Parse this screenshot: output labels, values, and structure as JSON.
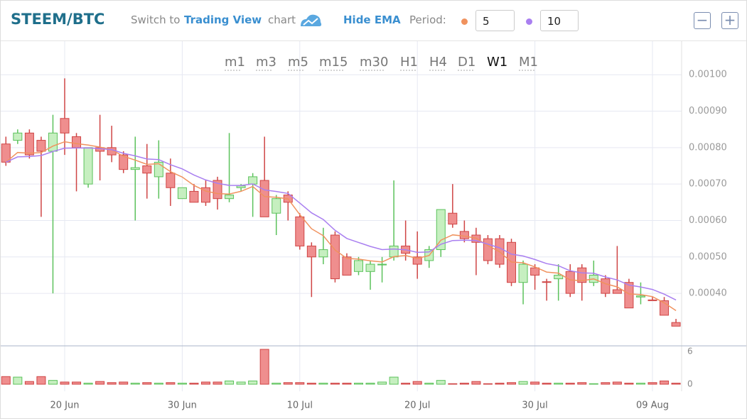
{
  "header": {
    "switch_prefix": "Switch to",
    "switch_link": "Trading View",
    "switch_suffix": "chart",
    "zoom_out": "−",
    "zoom_in": "+"
  },
  "chart_data": {
    "type": "candlestick",
    "title": "STEEM/BTC",
    "timeframes": [
      "m1",
      "m3",
      "m5",
      "m15",
      "m30",
      "H1",
      "H4",
      "D1",
      "W1",
      "M1"
    ],
    "selected_timeframe": "W1",
    "ema": {
      "label": "Hide EMA",
      "period_label": "Period:",
      "periods": [
        {
          "value": 5,
          "color": "#f0925e"
        },
        {
          "value": 10,
          "color": "#a97ff0"
        }
      ]
    },
    "up_color": "#c6efc0",
    "up_line": "#5cc25c",
    "down_color": "#ef8e8e",
    "down_line": "#cf4545",
    "grid": true,
    "x": [
      "15 Jun",
      "16 Jun",
      "17 Jun",
      "18 Jun",
      "19 Jun",
      "20 Jun",
      "21 Jun",
      "22 Jun",
      "23 Jun",
      "24 Jun",
      "25 Jun",
      "26 Jun",
      "27 Jun",
      "28 Jun",
      "29 Jun",
      "30 Jun",
      "01 Jul",
      "02 Jul",
      "03 Jul",
      "04 Jul",
      "05 Jul",
      "06 Jul",
      "07 Jul",
      "08 Jul",
      "09 Jul",
      "10 Jul",
      "11 Jul",
      "12 Jul",
      "13 Jul",
      "14 Jul",
      "15 Jul",
      "16 Jul",
      "17 Jul",
      "18 Jul",
      "19 Jul",
      "20 Jul",
      "21 Jul",
      "22 Jul",
      "23 Jul",
      "24 Jul",
      "25 Jul",
      "26 Jul",
      "27 Jul",
      "28 Jul",
      "29 Jul",
      "30 Jul",
      "31 Jul",
      "01 Aug",
      "02 Aug",
      "03 Aug",
      "04 Aug",
      "05 Aug",
      "06 Aug",
      "07 Aug",
      "08 Aug",
      "09 Aug",
      "10 Aug",
      "11 Aug"
    ],
    "xticks": [
      "20 Jun",
      "30 Jun",
      "10 Jul",
      "20 Jul",
      "30 Jul",
      "09 Aug"
    ],
    "open": [
      0.00081,
      0.00082,
      0.00084,
      0.00082,
      0.00079,
      0.00088,
      0.00083,
      0.0007,
      0.0008,
      0.0008,
      0.00078,
      0.00074,
      0.00075,
      0.00072,
      0.00073,
      0.00066,
      0.00068,
      0.00069,
      0.00071,
      0.00066,
      0.00069,
      0.0007,
      0.00071,
      0.00062,
      0.00067,
      0.00061,
      0.00053,
      0.0005,
      0.00056,
      0.0005,
      0.00046,
      0.00046,
      0.000478,
      0.0005,
      0.00053,
      0.0005,
      0.00049,
      0.00052,
      0.00062,
      0.00057,
      0.00056,
      0.00055,
      0.00055,
      0.00054,
      0.00043,
      0.00047,
      0.000432,
      0.00044,
      0.00046,
      0.00047,
      0.00043,
      0.00044,
      0.00041,
      0.00043,
      0.00039,
      0.000382,
      0.00038,
      0.00032
    ],
    "high": [
      0.00083,
      0.00085,
      0.00085,
      0.00083,
      0.00089,
      0.00099,
      0.00084,
      0.0008,
      0.00089,
      0.00086,
      0.00079,
      0.00083,
      0.00081,
      0.00082,
      0.00077,
      0.00069,
      0.0007,
      0.00071,
      0.00072,
      0.00084,
      0.0007,
      0.00073,
      0.00083,
      0.00067,
      0.00068,
      0.00062,
      0.00054,
      0.00058,
      0.00057,
      0.00051,
      0.0005,
      0.00049,
      0.0005,
      0.00071,
      0.0006,
      0.00057,
      0.00053,
      0.00063,
      0.0007,
      0.0006,
      0.00058,
      0.00056,
      0.00056,
      0.00055,
      0.00049,
      0.00048,
      0.00044,
      0.00048,
      0.00048,
      0.00048,
      0.00049,
      0.00045,
      0.00053,
      0.00044,
      0.00043,
      0.00039,
      0.00039,
      0.00033
    ],
    "low": [
      0.00075,
      0.00081,
      0.00077,
      0.00061,
      0.0004,
      0.00078,
      0.00068,
      0.00069,
      0.00071,
      0.00076,
      0.00073,
      0.0006,
      0.00066,
      0.00066,
      0.00064,
      0.00066,
      0.00065,
      0.00064,
      0.00063,
      0.00065,
      0.00068,
      0.00061,
      0.00061,
      0.00056,
      0.0006,
      0.00052,
      0.00039,
      0.00048,
      0.00043,
      0.00045,
      0.00045,
      0.00041,
      0.00043,
      0.00049,
      0.00049,
      0.00044,
      0.00047,
      0.0005,
      0.00058,
      0.00054,
      0.00045,
      0.00048,
      0.00047,
      0.00042,
      0.00037,
      0.00041,
      0.00038,
      0.00038,
      0.00039,
      0.00038,
      0.00042,
      0.00039,
      0.0004,
      0.00036,
      0.00037,
      0.00038,
      0.00034,
      0.00031
    ],
    "close": [
      0.00076,
      0.00084,
      0.00078,
      0.00079,
      0.00084,
      0.00084,
      0.0008,
      0.0008,
      0.00079,
      0.00078,
      0.00074,
      0.000745,
      0.00073,
      0.00076,
      0.00069,
      0.00069,
      0.00065,
      0.00065,
      0.00066,
      0.00067,
      0.000695,
      0.00072,
      0.00061,
      0.00066,
      0.00065,
      0.00053,
      0.0005,
      0.00052,
      0.00044,
      0.00045,
      0.00049,
      0.00048,
      0.00048,
      0.00053,
      0.00051,
      0.00048,
      0.00052,
      0.00063,
      0.00059,
      0.00055,
      0.00054,
      0.00049,
      0.00048,
      0.00043,
      0.00048,
      0.00045,
      0.00043,
      0.00045,
      0.0004,
      0.00043,
      0.00045,
      0.0004,
      0.0004,
      0.00036,
      0.000393,
      0.00038,
      0.00034,
      0.00031
    ],
    "volume": [
      1.4,
      1.3,
      0.5,
      1.4,
      0.7,
      0.4,
      0.4,
      0.2,
      0.5,
      0.3,
      0.4,
      0.2,
      0.3,
      0.2,
      0.3,
      0.2,
      0.2,
      0.4,
      0.4,
      0.6,
      0.4,
      0.6,
      6.4,
      0.2,
      0.3,
      0.3,
      0.2,
      0.2,
      0.2,
      0.2,
      0.2,
      0.2,
      0.4,
      1.3,
      0.2,
      0.5,
      0.2,
      0.7,
      0.1,
      0.2,
      0.5,
      0.1,
      0.2,
      0.3,
      0.5,
      0.4,
      0.2,
      0.2,
      0.2,
      0.3,
      0.1,
      0.3,
      0.4,
      0.2,
      0.2,
      0.3,
      0.6,
      0.2
    ],
    "ylim": [
      0.000256,
      0.001092
    ],
    "yticks": [
      {
        "value": 0.0004,
        "label": "0.00040"
      },
      {
        "value": 0.0005,
        "label": "0.00050"
      },
      {
        "value": 0.0006,
        "label": "0.00060"
      },
      {
        "value": 0.0007,
        "label": "0.00070"
      },
      {
        "value": 0.0008,
        "label": "0.00080"
      },
      {
        "value": 0.0009,
        "label": "0.00090"
      },
      {
        "value": 0.001,
        "label": "0.00100"
      }
    ],
    "y2lim": [
      -1.3,
      7.04
    ],
    "y2ticks": [
      0,
      6
    ]
  }
}
